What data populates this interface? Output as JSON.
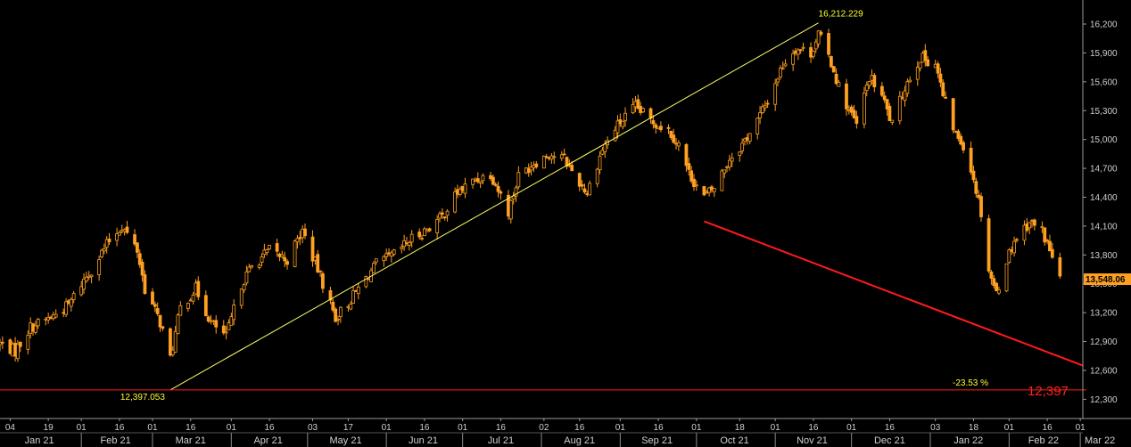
{
  "chart_data": {
    "type": "candlestick",
    "ylim": [
      12100,
      16450
    ],
    "y_ticks": [
      12300,
      12600,
      12900,
      13200,
      13500,
      13800,
      14100,
      14400,
      14700,
      15000,
      15300,
      15600,
      15900,
      16200
    ],
    "y_tick_labels": [
      "12,300",
      "12,600",
      "12,900",
      "13,200",
      "13,500",
      "13,800",
      "14,100",
      "14,400",
      "14,700",
      "15,000",
      "15,300",
      "15,600",
      "15,900",
      "16,200"
    ],
    "x_start": "2020-12-31",
    "x_end": "2022-03-02",
    "day_ticks": [
      {
        "date": "2021-01-04",
        "label": "04"
      },
      {
        "date": "2021-01-19",
        "label": "19"
      },
      {
        "date": "2021-02-01",
        "label": "01"
      },
      {
        "date": "2021-02-16",
        "label": "16"
      },
      {
        "date": "2021-03-01",
        "label": "01"
      },
      {
        "date": "2021-03-16",
        "label": "16"
      },
      {
        "date": "2021-04-01",
        "label": "01"
      },
      {
        "date": "2021-04-16",
        "label": "16"
      },
      {
        "date": "2021-05-03",
        "label": "03"
      },
      {
        "date": "2021-05-17",
        "label": "17"
      },
      {
        "date": "2021-06-01",
        "label": "01"
      },
      {
        "date": "2021-06-16",
        "label": "16"
      },
      {
        "date": "2021-07-01",
        "label": "01"
      },
      {
        "date": "2021-07-16",
        "label": "16"
      },
      {
        "date": "2021-08-02",
        "label": "02"
      },
      {
        "date": "2021-08-16",
        "label": "16"
      },
      {
        "date": "2021-09-01",
        "label": "01"
      },
      {
        "date": "2021-09-16",
        "label": "16"
      },
      {
        "date": "2021-10-01",
        "label": "01"
      },
      {
        "date": "2021-10-18",
        "label": "18"
      },
      {
        "date": "2021-11-01",
        "label": "01"
      },
      {
        "date": "2021-11-16",
        "label": "16"
      },
      {
        "date": "2021-12-01",
        "label": "01"
      },
      {
        "date": "2021-12-16",
        "label": "16"
      },
      {
        "date": "2022-01-03",
        "label": "03"
      },
      {
        "date": "2022-01-18",
        "label": "18"
      },
      {
        "date": "2022-02-01",
        "label": "01"
      },
      {
        "date": "2022-02-16",
        "label": "16"
      },
      {
        "date": "2022-03-01",
        "label": "01"
      }
    ],
    "months": [
      {
        "label": "Jan 21",
        "start": "2020-12-31",
        "end": "2021-01-31"
      },
      {
        "label": "Feb 21",
        "start": "2021-02-01",
        "end": "2021-02-28"
      },
      {
        "label": "Mar 21",
        "start": "2021-03-01",
        "end": "2021-03-31"
      },
      {
        "label": "Apr 21",
        "start": "2021-04-01",
        "end": "2021-04-30"
      },
      {
        "label": "May 21",
        "start": "2021-05-01",
        "end": "2021-05-31"
      },
      {
        "label": "Jun 21",
        "start": "2021-06-01",
        "end": "2021-06-30"
      },
      {
        "label": "Jul 21",
        "start": "2021-07-01",
        "end": "2021-07-31"
      },
      {
        "label": "Aug 21",
        "start": "2021-08-01",
        "end": "2021-08-31"
      },
      {
        "label": "Sep 21",
        "start": "2021-09-01",
        "end": "2021-09-30"
      },
      {
        "label": "Oct 21",
        "start": "2021-10-01",
        "end": "2021-10-31"
      },
      {
        "label": "Nov 21",
        "start": "2021-11-01",
        "end": "2021-11-30"
      },
      {
        "label": "Dec 21",
        "start": "2021-12-01",
        "end": "2021-12-31"
      },
      {
        "label": "Jan 22",
        "start": "2022-01-01",
        "end": "2022-01-31"
      },
      {
        "label": "Feb 22",
        "start": "2022-02-01",
        "end": "2022-02-28"
      },
      {
        "label": "Mar 22",
        "start": "2022-03-01",
        "end": "2022-03-02"
      }
    ],
    "price_path": [
      {
        "date": "2020-12-31",
        "close": 12880
      },
      {
        "date": "2021-01-06",
        "close": 12800
      },
      {
        "date": "2021-01-12",
        "close": 13050
      },
      {
        "date": "2021-01-20",
        "close": 13150
      },
      {
        "date": "2021-01-27",
        "close": 13280
      },
      {
        "date": "2021-02-01",
        "close": 13500
      },
      {
        "date": "2021-02-05",
        "close": 13650
      },
      {
        "date": "2021-02-12",
        "close": 13950
      },
      {
        "date": "2021-02-17",
        "close": 14100
      },
      {
        "date": "2021-02-23",
        "close": 13850
      },
      {
        "date": "2021-02-26",
        "close": 13450
      },
      {
        "date": "2021-03-04",
        "close": 13100
      },
      {
        "date": "2021-03-08",
        "close": 12720
      },
      {
        "date": "2021-03-12",
        "close": 13250
      },
      {
        "date": "2021-03-18",
        "close": 13450
      },
      {
        "date": "2021-03-24",
        "close": 13100
      },
      {
        "date": "2021-03-30",
        "close": 12950
      },
      {
        "date": "2021-04-05",
        "close": 13500
      },
      {
        "date": "2021-04-09",
        "close": 13680
      },
      {
        "date": "2021-04-16",
        "close": 13850
      },
      {
        "date": "2021-04-23",
        "close": 13750
      },
      {
        "date": "2021-04-29",
        "close": 14050
      },
      {
        "date": "2021-05-05",
        "close": 13650
      },
      {
        "date": "2021-05-12",
        "close": 13150
      },
      {
        "date": "2021-05-17",
        "close": 13300
      },
      {
        "date": "2021-05-21",
        "close": 13450
      },
      {
        "date": "2021-05-28",
        "close": 13700
      },
      {
        "date": "2021-06-04",
        "close": 13800
      },
      {
        "date": "2021-06-10",
        "close": 13950
      },
      {
        "date": "2021-06-16",
        "close": 14050
      },
      {
        "date": "2021-06-23",
        "close": 14200
      },
      {
        "date": "2021-06-29",
        "close": 14450
      },
      {
        "date": "2021-07-06",
        "close": 14580
      },
      {
        "date": "2021-07-12",
        "close": 14650
      },
      {
        "date": "2021-07-19",
        "close": 14250
      },
      {
        "date": "2021-07-23",
        "close": 14620
      },
      {
        "date": "2021-07-29",
        "close": 14760
      },
      {
        "date": "2021-08-04",
        "close": 14850
      },
      {
        "date": "2021-08-10",
        "close": 14800
      },
      {
        "date": "2021-08-16",
        "close": 14550
      },
      {
        "date": "2021-08-19",
        "close": 14450
      },
      {
        "date": "2021-08-25",
        "close": 14900
      },
      {
        "date": "2021-08-31",
        "close": 15150
      },
      {
        "date": "2021-09-07",
        "close": 15340
      },
      {
        "date": "2021-09-13",
        "close": 15200
      },
      {
        "date": "2021-09-20",
        "close": 15100
      },
      {
        "date": "2021-09-24",
        "close": 14950
      },
      {
        "date": "2021-09-28",
        "close": 14650
      },
      {
        "date": "2021-10-04",
        "close": 14400
      },
      {
        "date": "2021-10-08",
        "close": 14500
      },
      {
        "date": "2021-10-14",
        "close": 14800
      },
      {
        "date": "2021-10-19",
        "close": 14950
      },
      {
        "date": "2021-10-25",
        "close": 15200
      },
      {
        "date": "2021-10-29",
        "close": 15400
      },
      {
        "date": "2021-11-04",
        "close": 15780
      },
      {
        "date": "2021-11-09",
        "close": 15950
      },
      {
        "date": "2021-11-15",
        "close": 15900
      },
      {
        "date": "2021-11-18",
        "close": 16100
      },
      {
        "date": "2021-11-23",
        "close": 15800
      },
      {
        "date": "2021-11-26",
        "close": 15550
      },
      {
        "date": "2021-11-30",
        "close": 15300
      },
      {
        "date": "2021-12-03",
        "close": 15150
      },
      {
        "date": "2021-12-08",
        "close": 15650
      },
      {
        "date": "2021-12-13",
        "close": 15450
      },
      {
        "date": "2021-12-17",
        "close": 15150
      },
      {
        "date": "2021-12-22",
        "close": 15550
      },
      {
        "date": "2021-12-28",
        "close": 15850
      },
      {
        "date": "2022-01-03",
        "close": 15800
      },
      {
        "date": "2022-01-06",
        "close": 15450
      },
      {
        "date": "2022-01-11",
        "close": 15050
      },
      {
        "date": "2022-01-14",
        "close": 14950
      },
      {
        "date": "2022-01-18",
        "close": 14600
      },
      {
        "date": "2022-01-21",
        "close": 14250
      },
      {
        "date": "2022-01-24",
        "close": 13650
      },
      {
        "date": "2022-01-27",
        "close": 13400
      },
      {
        "date": "2022-01-31",
        "close": 13750
      },
      {
        "date": "2022-02-03",
        "close": 13950
      },
      {
        "date": "2022-02-09",
        "close": 14150
      },
      {
        "date": "2022-02-14",
        "close": 14050
      },
      {
        "date": "2022-02-17",
        "close": 13850
      },
      {
        "date": "2022-02-21",
        "close": 13550
      }
    ],
    "trendlines": [
      {
        "from": {
          "date": "2021-03-08",
          "value": 12397.053
        },
        "to": {
          "date": "2021-11-18",
          "value": 16212.229
        },
        "color": "#ffff66"
      },
      {
        "from": {
          "date": "2021-10-04",
          "value": 14150
        },
        "to": {
          "date": "2022-03-02",
          "value": 12650
        },
        "color": "#ff1a1a"
      }
    ],
    "hline": {
      "value": 12397,
      "color": "#ff1a1a"
    },
    "last_value": {
      "value": 13548,
      "label": "13,548.06",
      "color": "#ffa020"
    },
    "annotations": {
      "low_label": "12,397.053",
      "high_label": "16,212.229",
      "pct_label": "-23.53 %",
      "level_label": "12,397"
    },
    "colors": {
      "candle": "#ffa020",
      "axis_text": "#cfcfcf",
      "annotation": "#ffff33"
    }
  }
}
